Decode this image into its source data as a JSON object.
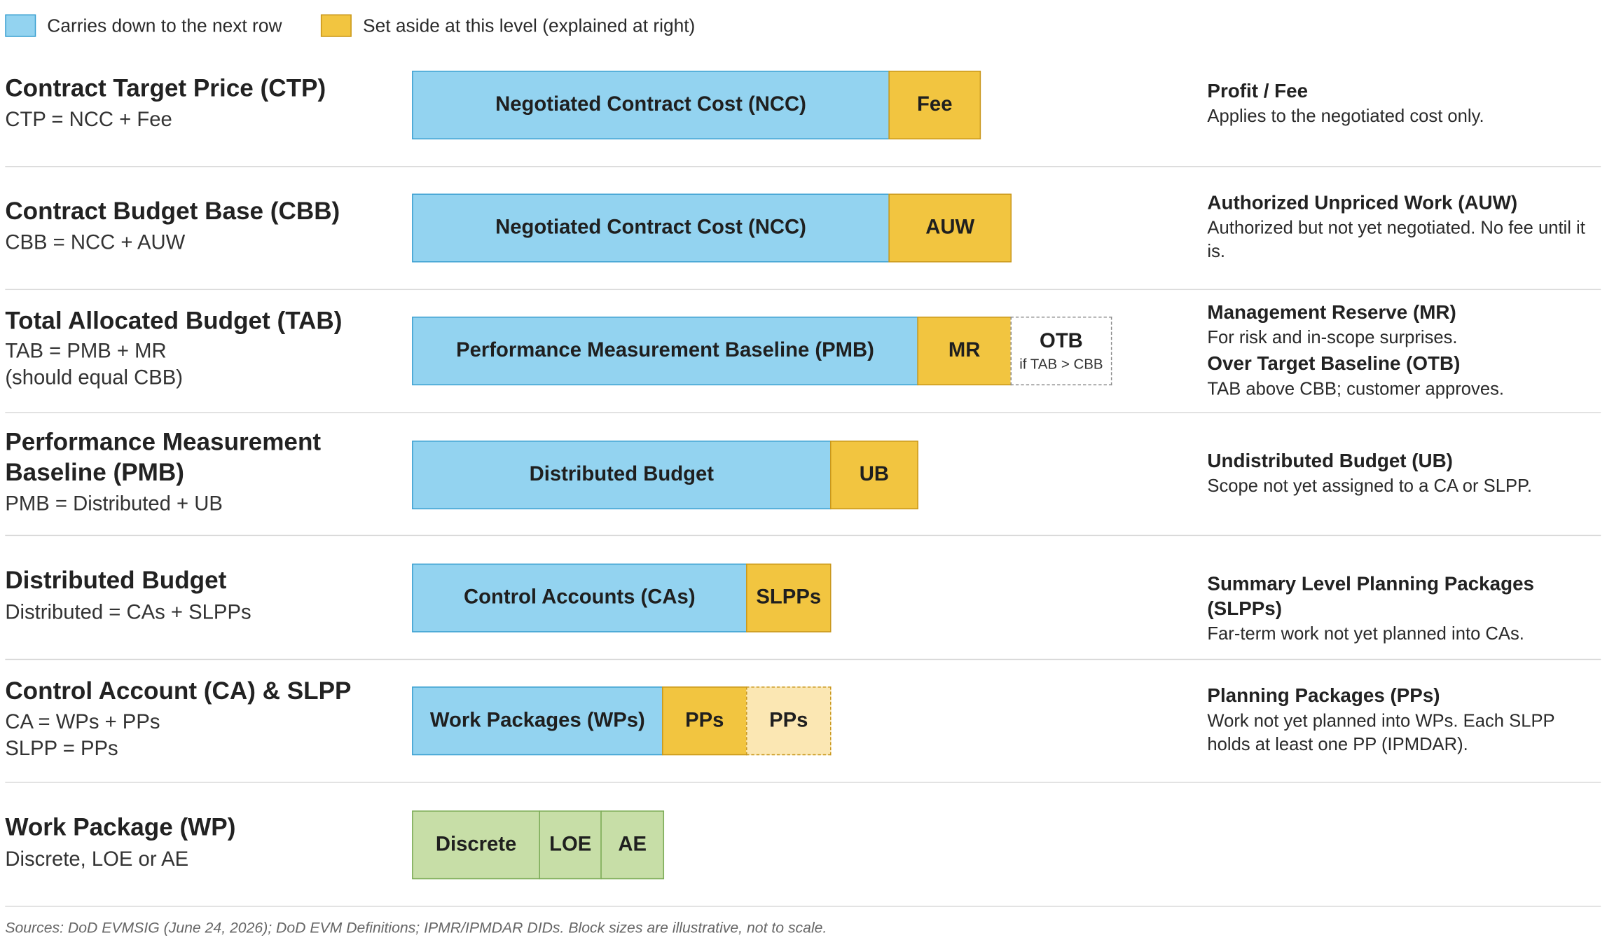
{
  "legend": {
    "items": [
      {
        "label": "Carries down to the next row",
        "color": "#93d3f0"
      },
      {
        "label": "Set aside at this level (explained at right)",
        "color": "#f2c540"
      }
    ]
  },
  "rows": [
    {
      "title": "Contract Target Price (CTP)",
      "formula": "CTP = NCC + Fee",
      "blocks": [
        {
          "label": "Negotiated Contract Cost (NCC)",
          "kind": "carry"
        },
        {
          "label": "Fee",
          "kind": "set-aside"
        }
      ],
      "notes": [
        {
          "title": "Profit / Fee",
          "desc": "Applies to the negotiated cost only."
        }
      ]
    },
    {
      "title": "Contract Budget Base (CBB)",
      "formula": "CBB = NCC + AUW",
      "blocks": [
        {
          "label": "Negotiated Contract Cost (NCC)",
          "kind": "carry"
        },
        {
          "label": "AUW",
          "kind": "set-aside"
        }
      ],
      "notes": [
        {
          "title": "Authorized Unpriced Work (AUW)",
          "desc": "Authorized but not yet negotiated. No fee until it is."
        }
      ]
    },
    {
      "title": "Total Allocated Budget (TAB)",
      "formula": "TAB = PMB + MR\n(should equal CBB)",
      "blocks": [
        {
          "label": "Performance Measurement Baseline (PMB)",
          "kind": "carry"
        },
        {
          "label": "MR",
          "kind": "set-aside"
        },
        {
          "label": "OTB",
          "sublabel": "if TAB > CBB",
          "kind": "conditional"
        }
      ],
      "notes": [
        {
          "title": "Management Reserve (MR)",
          "desc": "For risk and in-scope surprises."
        },
        {
          "title": "Over Target Baseline (OTB)",
          "desc": "TAB above CBB; customer approves."
        }
      ]
    },
    {
      "title": "Performance Measurement Baseline (PMB)",
      "formula": "PMB = Distributed + UB",
      "blocks": [
        {
          "label": "Distributed Budget",
          "kind": "carry"
        },
        {
          "label": "UB",
          "kind": "set-aside"
        }
      ],
      "notes": [
        {
          "title": "Undistributed Budget (UB)",
          "desc": "Scope not yet assigned to a CA or SLPP."
        }
      ]
    },
    {
      "title": "Distributed Budget",
      "formula": "Distributed = CAs + SLPPs",
      "blocks": [
        {
          "label": "Control Accounts (CAs)",
          "kind": "carry"
        },
        {
          "label": "SLPPs",
          "kind": "set-aside"
        }
      ],
      "notes": [
        {
          "title": "Summary Level Planning Packages (SLPPs)",
          "desc": "Far-term work not yet planned into CAs."
        }
      ]
    },
    {
      "title": "Control Account (CA) & SLPP",
      "formula": "CA = WPs + PPs\nSLPP = PPs",
      "blocks": [
        {
          "label": "Work Packages (WPs)",
          "kind": "carry"
        },
        {
          "label": "PPs",
          "kind": "set-aside"
        },
        {
          "label": "PPs",
          "kind": "set-aside-slpp"
        }
      ],
      "notes": [
        {
          "title": "Planning Packages (PPs)",
          "desc": "Work not yet planned into WPs. Each SLPP holds at least one PP (IPMDAR)."
        }
      ]
    },
    {
      "title": "Work Package (WP)",
      "formula": "Discrete, LOE or AE",
      "blocks": [
        {
          "label": "Discrete",
          "kind": "type"
        },
        {
          "label": "LOE",
          "kind": "type"
        },
        {
          "label": "AE",
          "kind": "type"
        }
      ],
      "notes": []
    }
  ],
  "sources": "Sources: DoD EVMSIG (June 24, 2026); DoD EVM Definitions; IPMR/IPMDAR DIDs. Block sizes are illustrative, not to scale."
}
